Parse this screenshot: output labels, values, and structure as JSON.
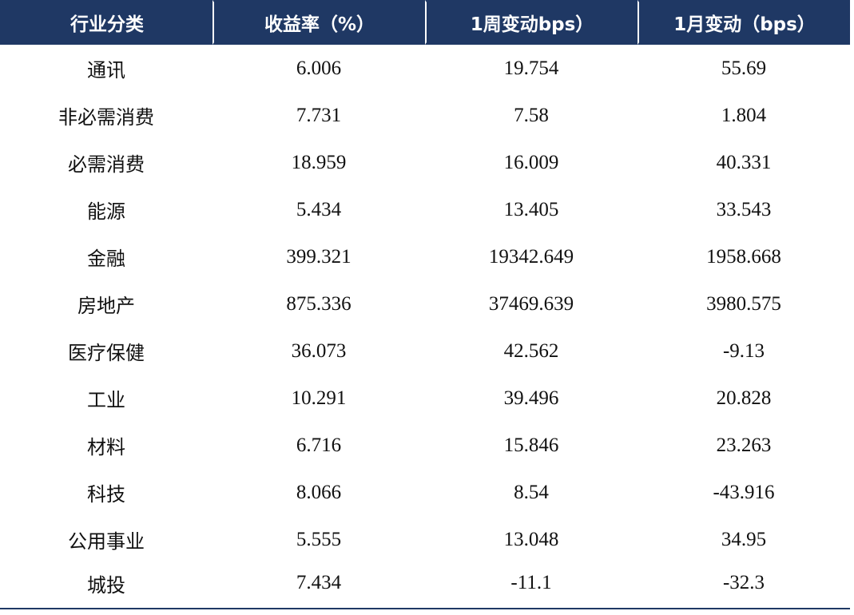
{
  "table": {
    "headers": [
      "行业分类",
      "收益率（%）",
      "1周变动bps）",
      "1月变动（bps）"
    ],
    "rows": [
      {
        "category": "通讯",
        "yield": "6.006",
        "week_change": "19.754",
        "month_change": "55.69"
      },
      {
        "category": "非必需消费",
        "yield": "7.731",
        "week_change": "7.58",
        "month_change": "1.804"
      },
      {
        "category": "必需消费",
        "yield": "18.959",
        "week_change": "16.009",
        "month_change": "40.331"
      },
      {
        "category": "能源",
        "yield": "5.434",
        "week_change": "13.405",
        "month_change": "33.543"
      },
      {
        "category": "金融",
        "yield": "399.321",
        "week_change": "19342.649",
        "month_change": "1958.668"
      },
      {
        "category": "房地产",
        "yield": "875.336",
        "week_change": "37469.639",
        "month_change": "3980.575"
      },
      {
        "category": "医疗保健",
        "yield": "36.073",
        "week_change": "42.562",
        "month_change": "-9.13"
      },
      {
        "category": "工业",
        "yield": "10.291",
        "week_change": "39.496",
        "month_change": "20.828"
      },
      {
        "category": "材料",
        "yield": "6.716",
        "week_change": "15.846",
        "month_change": "23.263"
      },
      {
        "category": "科技",
        "yield": "8.066",
        "week_change": "8.54",
        "month_change": "-43.916"
      },
      {
        "category": "公用事业",
        "yield": "5.555",
        "week_change": "13.048",
        "month_change": "34.95"
      },
      {
        "category": "城投",
        "yield": "7.434",
        "week_change": "-11.1",
        "month_change": "-32.3"
      }
    ]
  },
  "colors": {
    "header_background": "#1f3864",
    "header_text": "#ffffff",
    "body_text": "#111111"
  }
}
